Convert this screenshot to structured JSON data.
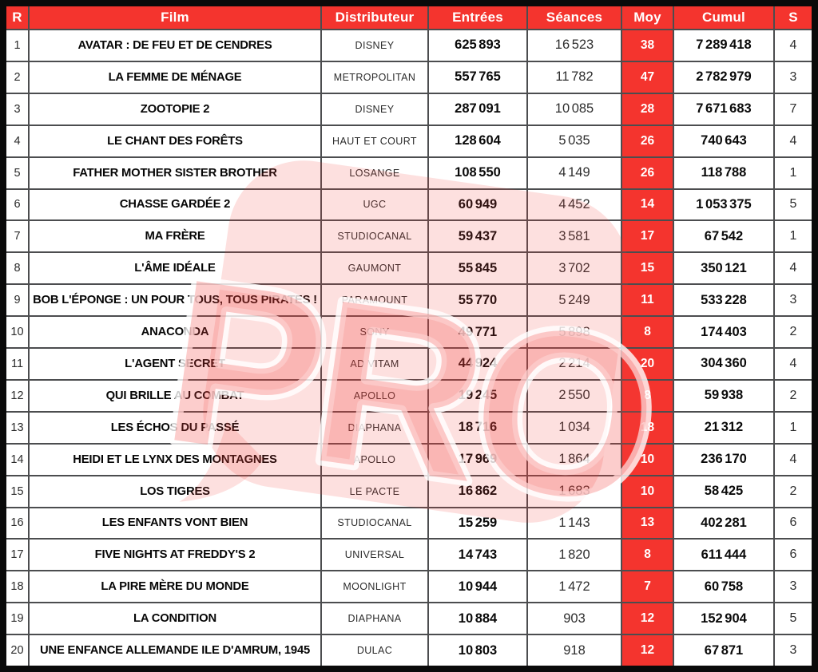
{
  "columns": [
    {
      "label": "R"
    },
    {
      "label": "Film"
    },
    {
      "label": "Distributeur"
    },
    {
      "label": "Entrées"
    },
    {
      "label": "Séances"
    },
    {
      "label": "Moy"
    },
    {
      "label": "Cumul"
    },
    {
      "label": "S"
    }
  ],
  "rows": [
    {
      "rank": "1",
      "film": "AVATAR : DE FEU ET DE CENDRES",
      "distributor": "DISNEY",
      "entrees": "625 893",
      "seances": "16 523",
      "moy": "38",
      "cumul": "7 289 418",
      "weeks": "4"
    },
    {
      "rank": "2",
      "film": "LA FEMME DE MÉNAGE",
      "distributor": "METROPOLITAN",
      "entrees": "557 765",
      "seances": "11 782",
      "moy": "47",
      "cumul": "2 782 979",
      "weeks": "3"
    },
    {
      "rank": "3",
      "film": "ZOOTOPIE 2",
      "distributor": "DISNEY",
      "entrees": "287 091",
      "seances": "10 085",
      "moy": "28",
      "cumul": "7 671 683",
      "weeks": "7"
    },
    {
      "rank": "4",
      "film": "LE CHANT DES FORÊTS",
      "distributor": "HAUT ET COURT",
      "entrees": "128 604",
      "seances": "5 035",
      "moy": "26",
      "cumul": "740 643",
      "weeks": "4"
    },
    {
      "rank": "5",
      "film": "FATHER MOTHER SISTER BROTHER",
      "distributor": "LOSANGE",
      "entrees": "108 550",
      "seances": "4 149",
      "moy": "26",
      "cumul": "118 788",
      "weeks": "1"
    },
    {
      "rank": "6",
      "film": "CHASSE GARDÉE 2",
      "distributor": "UGC",
      "entrees": "60 949",
      "seances": "4 452",
      "moy": "14",
      "cumul": "1 053 375",
      "weeks": "5"
    },
    {
      "rank": "7",
      "film": "MA FRÈRE",
      "distributor": "STUDIOCANAL",
      "entrees": "59 437",
      "seances": "3 581",
      "moy": "17",
      "cumul": "67 542",
      "weeks": "1"
    },
    {
      "rank": "8",
      "film": "L'ÂME IDÉALE",
      "distributor": "GAUMONT",
      "entrees": "55 845",
      "seances": "3 702",
      "moy": "15",
      "cumul": "350 121",
      "weeks": "4"
    },
    {
      "rank": "9",
      "film": "BOB L'ÉPONGE : UN POUR TOUS, TOUS PIRATES !",
      "distributor": "PARAMOUNT",
      "entrees": "55 770",
      "seances": "5 249",
      "moy": "11",
      "cumul": "533 228",
      "weeks": "3"
    },
    {
      "rank": "10",
      "film": "ANACONDA",
      "distributor": "SONY",
      "entrees": "49 771",
      "seances": "5 898",
      "moy": "8",
      "cumul": "174 403",
      "weeks": "2"
    },
    {
      "rank": "11",
      "film": "L'AGENT SECRET",
      "distributor": "AD VITAM",
      "entrees": "44 924",
      "seances": "2 214",
      "moy": "20",
      "cumul": "304 360",
      "weeks": "4"
    },
    {
      "rank": "12",
      "film": "QUI BRILLE AU COMBAT",
      "distributor": "APOLLO",
      "entrees": "19 245",
      "seances": "2 550",
      "moy": "8",
      "cumul": "59 938",
      "weeks": "2"
    },
    {
      "rank": "13",
      "film": "LES ÉCHOS DU PASSÉ",
      "distributor": "DIAPHANA",
      "entrees": "18 716",
      "seances": "1 034",
      "moy": "18",
      "cumul": "21 312",
      "weeks": "1"
    },
    {
      "rank": "14",
      "film": "HEIDI ET LE LYNX DES MONTAGNES",
      "distributor": "APOLLO",
      "entrees": "17 969",
      "seances": "1 864",
      "moy": "10",
      "cumul": "236 170",
      "weeks": "4"
    },
    {
      "rank": "15",
      "film": "LOS TIGRES",
      "distributor": "LE PACTE",
      "entrees": "16 862",
      "seances": "1 683",
      "moy": "10",
      "cumul": "58 425",
      "weeks": "2"
    },
    {
      "rank": "16",
      "film": "LES ENFANTS VONT BIEN",
      "distributor": "STUDIOCANAL",
      "entrees": "15 259",
      "seances": "1 143",
      "moy": "13",
      "cumul": "402 281",
      "weeks": "6"
    },
    {
      "rank": "17",
      "film": "FIVE NIGHTS AT FREDDY'S 2",
      "distributor": "UNIVERSAL",
      "entrees": "14 743",
      "seances": "1 820",
      "moy": "8",
      "cumul": "611 444",
      "weeks": "6"
    },
    {
      "rank": "18",
      "film": "LA PIRE MÈRE DU MONDE",
      "distributor": "MOONLIGHT",
      "entrees": "10 944",
      "seances": "1 472",
      "moy": "7",
      "cumul": "60 758",
      "weeks": "3"
    },
    {
      "rank": "19",
      "film": "LA CONDITION",
      "distributor": "DIAPHANA",
      "entrees": "10 884",
      "seances": "903",
      "moy": "12",
      "cumul": "152 904",
      "weeks": "5"
    },
    {
      "rank": "20",
      "film": "UNE ENFANCE ALLEMANDE ILE D'AMRUM, 1945",
      "distributor": "DULAC",
      "entrees": "10 803",
      "seances": "918",
      "moy": "12",
      "cumul": "67 871",
      "weeks": "3"
    }
  ],
  "watermark": {
    "text": "PRO"
  },
  "colors": {
    "accent_red": "#f4342e",
    "grid_line": "#4c4d4f",
    "outer_frame": "#0a0a0a",
    "watermark_fill": "rgba(242,62,58,0.16)",
    "watermark_letters": "rgba(242,62,58,0.26)",
    "watermark_stroke": "rgba(255,255,255,0.8)"
  }
}
